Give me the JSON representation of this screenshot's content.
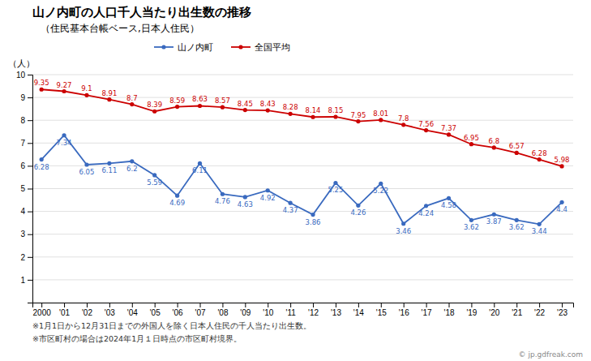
{
  "chart_data": {
    "type": "line",
    "title": "山ノ内町の人口千人当たり出生数の推移",
    "subtitle": "（住民基本台帳ベース,日本人住民）",
    "ylabel": "（人）",
    "x": [
      2000,
      2001,
      2002,
      2003,
      2004,
      2005,
      2006,
      2007,
      2008,
      2009,
      2010,
      2011,
      2012,
      2013,
      2014,
      2015,
      2016,
      2017,
      2018,
      2019,
      2020,
      2021,
      2022,
      2023
    ],
    "series": [
      {
        "name": "山ノ内町",
        "color": "#3a6abf",
        "marker": "circle",
        "values": [
          6.28,
          7.34,
          6.05,
          6.11,
          6.2,
          5.59,
          4.69,
          6.11,
          4.76,
          4.63,
          4.92,
          4.37,
          3.86,
          5.25,
          4.26,
          5.22,
          3.46,
          4.24,
          4.58,
          3.62,
          3.87,
          3.62,
          3.44,
          4.4
        ]
      },
      {
        "name": "全国平均",
        "color": "#cc0000",
        "marker": "circle",
        "values": [
          9.35,
          9.27,
          9.1,
          8.91,
          8.7,
          8.39,
          8.59,
          8.63,
          8.57,
          8.45,
          8.43,
          8.28,
          8.14,
          8.15,
          7.95,
          8.01,
          7.8,
          7.56,
          7.37,
          6.95,
          6.8,
          6.57,
          6.28,
          5.98
        ]
      }
    ],
    "xlim": [
      1999.6,
      2023.5
    ],
    "xticks": [
      {
        "value": 2000,
        "label": "2000"
      },
      {
        "value": 2001,
        "label": "'01"
      },
      {
        "value": 2002,
        "label": "'02"
      },
      {
        "value": 2003,
        "label": "'03"
      },
      {
        "value": 2004,
        "label": "'04"
      },
      {
        "value": 2005,
        "label": "'05"
      },
      {
        "value": 2006,
        "label": "'06"
      },
      {
        "value": 2007,
        "label": "'07"
      },
      {
        "value": 2008,
        "label": "'08"
      },
      {
        "value": 2009,
        "label": "'09"
      },
      {
        "value": 2010,
        "label": "'10"
      },
      {
        "value": 2011,
        "label": "'11"
      },
      {
        "value": 2012,
        "label": "'12"
      },
      {
        "value": 2013,
        "label": "'13"
      },
      {
        "value": 2014,
        "label": "'14"
      },
      {
        "value": 2015,
        "label": "'15"
      },
      {
        "value": 2016,
        "label": "'16"
      },
      {
        "value": 2017,
        "label": "'17"
      },
      {
        "value": 2018,
        "label": "'18"
      },
      {
        "value": 2019,
        "label": "'19"
      },
      {
        "value": 2020,
        "label": "'20"
      },
      {
        "value": 2021,
        "label": "'21"
      },
      {
        "value": 2022,
        "label": "'22"
      },
      {
        "value": 2023,
        "label": "'23"
      }
    ],
    "ylim": [
      0,
      10
    ],
    "yticks": [
      1,
      2,
      3,
      4,
      5,
      6,
      7,
      8,
      9,
      10
    ],
    "grid": true,
    "legend": "top",
    "data_labels": true,
    "annotations": [
      "※1月1日から12月31日までの外国人を除く日本人住民の千人当たり出生数。",
      "※市区町村の場合は2024年1月１日時点の市区町村境界。",
      "© jp.gdfreak.com"
    ]
  }
}
